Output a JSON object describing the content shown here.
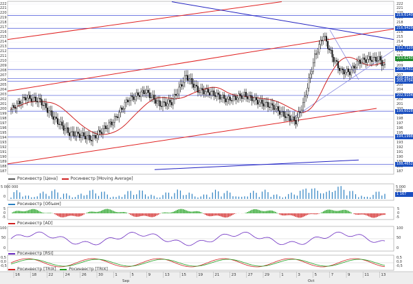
{
  "price_panel": {
    "y_ticks": [
      "222",
      "221",
      "220",
      "219",
      "218",
      "217",
      "216",
      "215",
      "214",
      "213",
      "212",
      "211",
      "210",
      "209",
      "208",
      "207",
      "206",
      "205",
      "204",
      "203",
      "202",
      "201",
      "200",
      "199",
      "198",
      "197",
      "196",
      "195",
      "194",
      "193",
      "192",
      "191",
      "190",
      "189",
      "188",
      "187"
    ],
    "price_tags": [
      {
        "text": "219,6140",
        "color": "#1a4fc0"
      },
      {
        "text": "216,9429",
        "color": "#1a4fc0"
      },
      {
        "text": "212,7120",
        "color": "#1a4fc0"
      },
      {
        "text": "210,6240",
        "color": "#1a8a2a"
      },
      {
        "text": "208,3431",
        "color": "#1a4fc0"
      },
      {
        "text": "206,4419",
        "color": "#1a4fc0"
      },
      {
        "text": "205,8704",
        "color": "#1a4fc0"
      },
      {
        "text": "202,9104",
        "color": "#1a4fc0"
      },
      {
        "text": "199,6028",
        "color": "#1a4fc0"
      },
      {
        "text": "194,1998",
        "color": "#1a4fc0"
      },
      {
        "text": "188,4652",
        "color": "#1a4fc0"
      }
    ],
    "legend": [
      {
        "label": "Росинвестр [Цена]",
        "color": "#555555"
      },
      {
        "label": "Росинвестр [Moving Average]",
        "color": "#d02020"
      }
    ]
  },
  "volume_panel": {
    "left_label": "5 000 000",
    "left_label_2": "0",
    "right_label": "5 000 000",
    "right_tag": "1 167 581",
    "legend": [
      {
        "label": "Росинвестр [Объем]",
        "color": "#2a7fc0"
      }
    ]
  },
  "ad_panel": {
    "ticks": [
      "5",
      "0",
      "-5"
    ],
    "legend": [
      {
        "label": "Росинвестр [AD]",
        "color": "#d02020"
      }
    ]
  },
  "rsi_panel": {
    "ticks": [
      "100",
      "50",
      "0"
    ],
    "legend": [
      {
        "label": "Росинвестр [RSI]",
        "color": "#6a2ac0"
      }
    ]
  },
  "trix_panel": {
    "ticks": [
      "0,5",
      "0,0",
      "-0,5"
    ],
    "legend": [
      {
        "label": "Росинвестр [TRIX]",
        "color": "#d02020"
      },
      {
        "label": "Росинвестр [TRIX]",
        "color": "#20a020"
      }
    ]
  },
  "time_axis": {
    "dates": [
      "16",
      "18",
      "22",
      "24",
      "26",
      "30",
      "1",
      "5",
      "9",
      "13",
      "15",
      "19",
      "21",
      "23",
      "27",
      "29",
      "1",
      "3",
      "5",
      "7",
      "9",
      "11",
      "13"
    ],
    "months": [
      "Sep",
      "Oct"
    ]
  },
  "colors": {
    "grid": "#e4e4ee",
    "channel_red": "#e02020",
    "trend_blue": "#2020c0",
    "hline": "#3a46d0",
    "up_candle": "#ffffff",
    "down_candle": "#111111"
  }
}
